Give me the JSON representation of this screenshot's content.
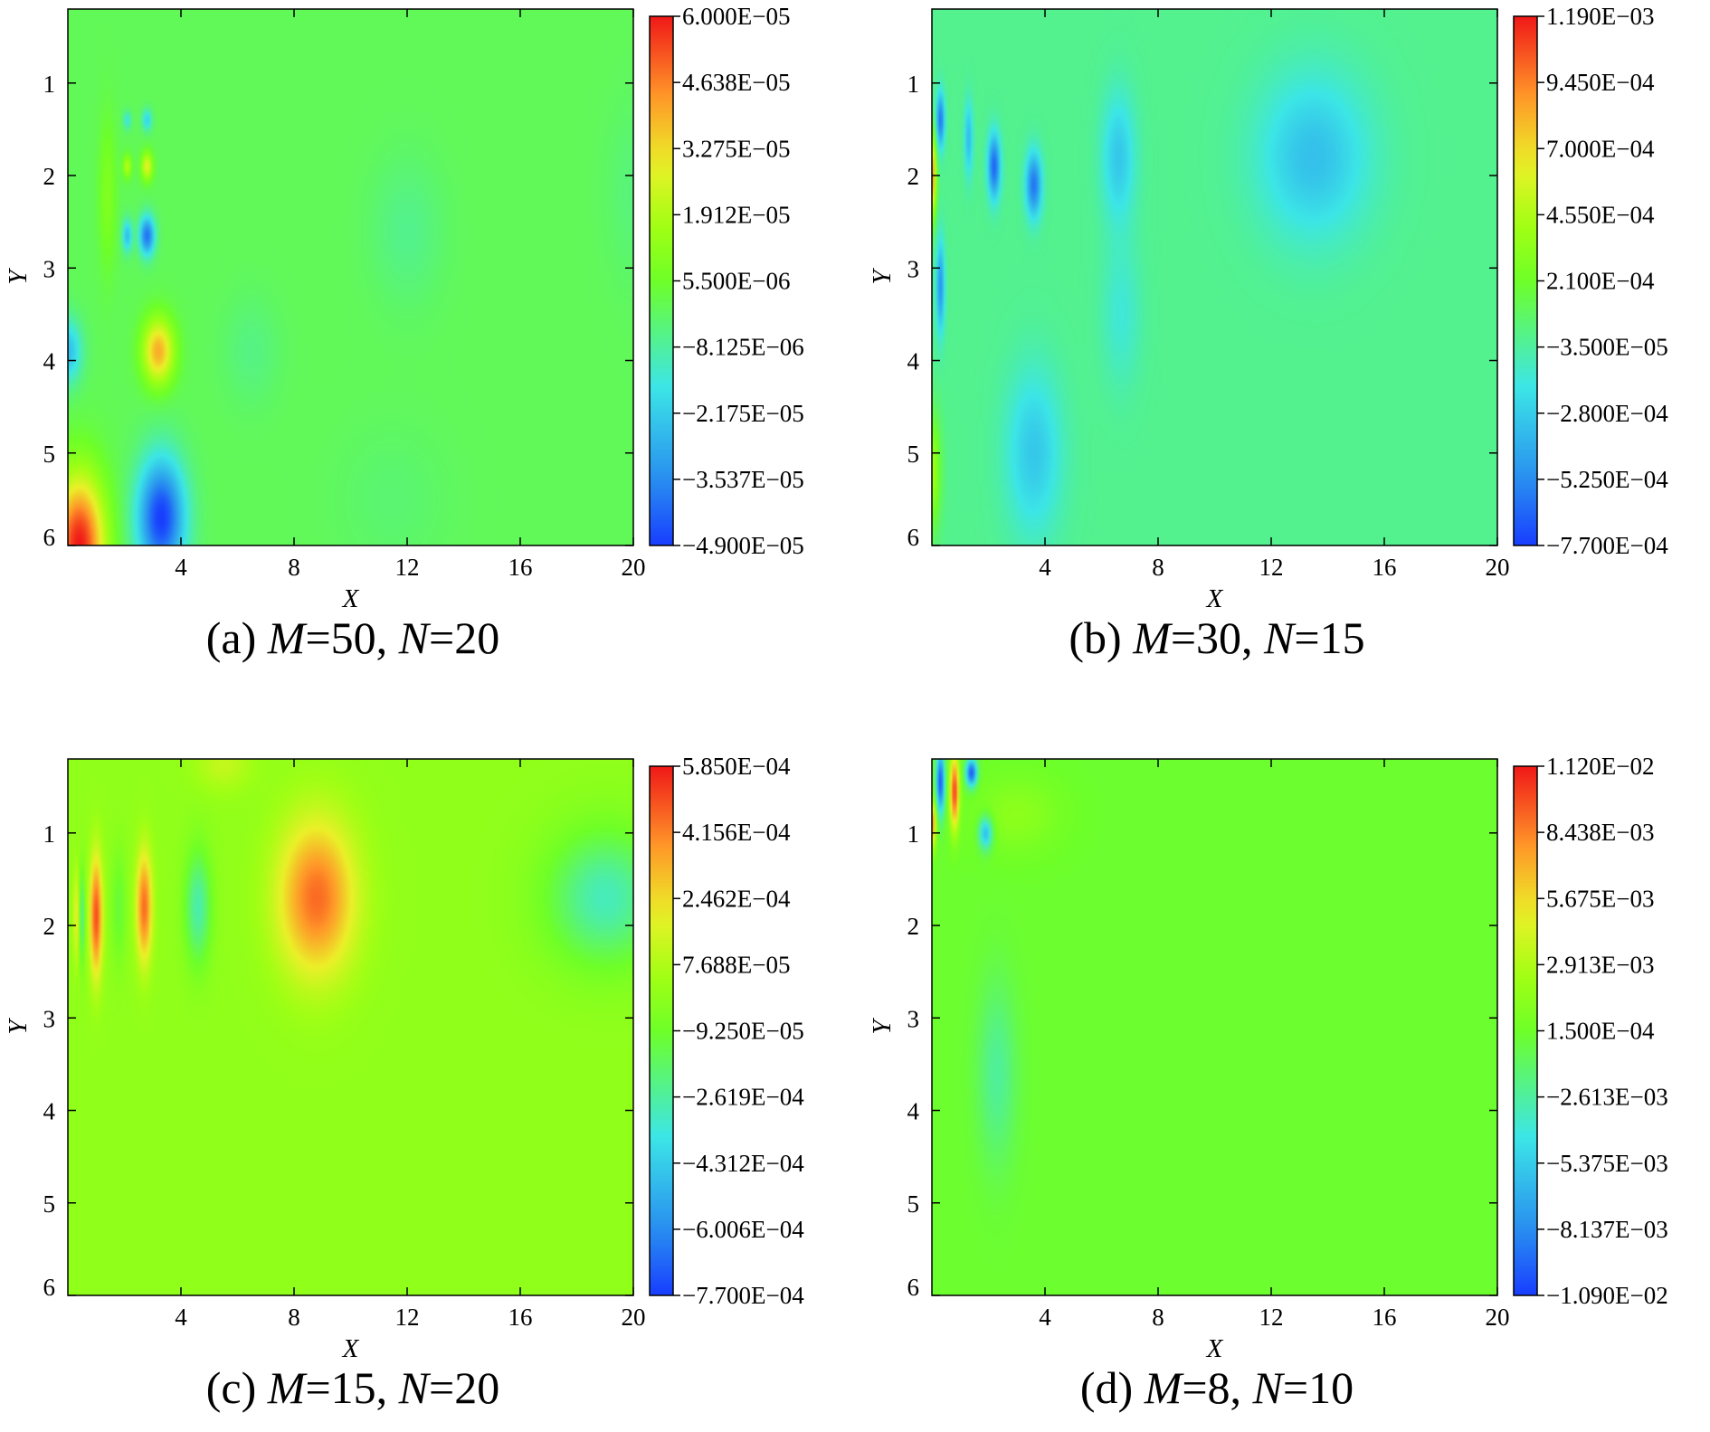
{
  "chart_data": [
    {
      "type": "heatmap",
      "panel": "(a)",
      "caption": {
        "prefix": "(a) ",
        "m_label": "M",
        "m_value": "=50, ",
        "n_label": "N",
        "n_value": "=20"
      },
      "xlabel": "X",
      "ylabel": "Y",
      "xlim": [
        0,
        20
      ],
      "ylim": [
        6,
        0.2
      ],
      "xticks": [
        "4",
        "8",
        "12",
        "16",
        "20"
      ],
      "yticks": [
        "1",
        "2",
        "3",
        "4",
        "5",
        "6"
      ],
      "colorbar": {
        "min": -4.9e-05,
        "max": 6e-05,
        "labels": [
          "6.000E−05",
          "4.638E−05",
          "3.275E−05",
          "1.912E−05",
          "5.500E−06",
          "−8.125E−06",
          "−2.175E−05",
          "−3.537E−05",
          "−4.900E−05"
        ]
      },
      "background": 0.0,
      "features": [
        {
          "x": 0.4,
          "y": 6.0,
          "sx": 0.9,
          "sy": 0.75,
          "v": 6e-05
        },
        {
          "x": 3.3,
          "y": 5.7,
          "sx": 0.85,
          "sy": 0.65,
          "v": -4.9e-05
        },
        {
          "x": 3.2,
          "y": 3.9,
          "sx": 0.55,
          "sy": 0.35,
          "v": 4e-05
        },
        {
          "x": 0.0,
          "y": 3.9,
          "sx": 0.5,
          "sy": 0.35,
          "v": -2.5e-05
        },
        {
          "x": 2.8,
          "y": 2.65,
          "sx": 0.28,
          "sy": 0.22,
          "v": -4e-05
        },
        {
          "x": 2.1,
          "y": 2.65,
          "sx": 0.18,
          "sy": 0.18,
          "v": -2.5e-05
        },
        {
          "x": 2.8,
          "y": 1.9,
          "sx": 0.2,
          "sy": 0.15,
          "v": 2.8e-05
        },
        {
          "x": 2.1,
          "y": 1.9,
          "sx": 0.15,
          "sy": 0.12,
          "v": 2e-05
        },
        {
          "x": 2.8,
          "y": 1.4,
          "sx": 0.18,
          "sy": 0.12,
          "v": -2e-05
        },
        {
          "x": 2.1,
          "y": 1.4,
          "sx": 0.15,
          "sy": 0.1,
          "v": -1.5e-05
        },
        {
          "x": 1.4,
          "y": 2.2,
          "sx": 0.3,
          "sy": 0.8,
          "v": 1e-05
        },
        {
          "x": 6.5,
          "y": 3.9,
          "sx": 1.0,
          "sy": 0.6,
          "v": -5e-06
        },
        {
          "x": 12.0,
          "y": 2.6,
          "sx": 1.3,
          "sy": 0.8,
          "v": -6e-06
        },
        {
          "x": 11.5,
          "y": 5.5,
          "sx": 2.0,
          "sy": 0.8,
          "v": -3e-06
        },
        {
          "x": 20.0,
          "y": 2.2,
          "sx": 1.0,
          "sy": 1.0,
          "v": -4e-06
        }
      ]
    },
    {
      "type": "heatmap",
      "panel": "(b)",
      "caption": {
        "prefix": "(b) ",
        "m_label": "M",
        "m_value": "=30, ",
        "n_label": "N",
        "n_value": "=15"
      },
      "xlabel": "X",
      "ylabel": "Y",
      "xlim": [
        0,
        20
      ],
      "ylim": [
        6,
        0.2
      ],
      "xticks": [
        "4",
        "8",
        "12",
        "16",
        "20"
      ],
      "yticks": [
        "1",
        "2",
        "3",
        "4",
        "5",
        "6"
      ],
      "colorbar": {
        "min": -0.00077,
        "max": 0.00119,
        "labels": [
          "1.190E−03",
          "9.450E−04",
          "7.000E−04",
          "4.550E−04",
          "2.100E−04",
          "−3.500E−05",
          "−2.800E−04",
          "−5.250E−04",
          "−7.700E−04"
        ]
      },
      "background": 0.0,
      "features": [
        {
          "x": 0.0,
          "y": 2.0,
          "sx": 0.15,
          "sy": 0.45,
          "v": 0.0009
        },
        {
          "x": 0.3,
          "y": 1.4,
          "sx": 0.15,
          "sy": 0.3,
          "v": -0.0006
        },
        {
          "x": 0.3,
          "y": 3.2,
          "sx": 0.15,
          "sy": 0.5,
          "v": -0.0005
        },
        {
          "x": 2.2,
          "y": 1.9,
          "sx": 0.22,
          "sy": 0.35,
          "v": -0.00065
        },
        {
          "x": 3.6,
          "y": 2.1,
          "sx": 0.28,
          "sy": 0.35,
          "v": -0.0006
        },
        {
          "x": 1.3,
          "y": 1.6,
          "sx": 0.15,
          "sy": 0.4,
          "v": -0.00035
        },
        {
          "x": 6.6,
          "y": 1.8,
          "sx": 0.6,
          "sy": 0.7,
          "v": -0.0003
        },
        {
          "x": 13.5,
          "y": 1.8,
          "sx": 2.0,
          "sy": 0.9,
          "v": -0.00033
        },
        {
          "x": 3.6,
          "y": 5.0,
          "sx": 1.0,
          "sy": 0.9,
          "v": -0.0003
        },
        {
          "x": 6.7,
          "y": 3.5,
          "sx": 0.7,
          "sy": 0.8,
          "v": -0.00015
        },
        {
          "x": 0.0,
          "y": 5.2,
          "sx": 0.3,
          "sy": 0.6,
          "v": 0.0004
        }
      ]
    },
    {
      "type": "heatmap",
      "panel": "(c)",
      "caption": {
        "prefix": "(c) ",
        "m_label": "M",
        "m_value": "=15, ",
        "n_label": "N",
        "n_value": "=20"
      },
      "xlabel": "X",
      "ylabel": "Y",
      "xlim": [
        0,
        20
      ],
      "ylim": [
        6,
        0.2
      ],
      "xticks": [
        "4",
        "8",
        "12",
        "16",
        "20"
      ],
      "yticks": [
        "1",
        "2",
        "3",
        "4",
        "5",
        "6"
      ],
      "colorbar": {
        "min": -0.00077,
        "max": 0.000585,
        "labels": [
          "5.850E−04",
          "4.156E−04",
          "2.462E−04",
          "7.688E−05",
          "−9.250E−05",
          "−2.619E−04",
          "−4.312E−04",
          "−6.006E−04",
          "−7.700E−04"
        ]
      },
      "background": 0.0,
      "features": [
        {
          "x": 1.0,
          "y": 1.9,
          "sx": 0.22,
          "sy": 0.65,
          "v": 0.0005
        },
        {
          "x": 0.3,
          "y": 1.9,
          "sx": 0.12,
          "sy": 0.5,
          "v": 0.0002
        },
        {
          "x": 0.5,
          "y": 1.9,
          "sx": 0.1,
          "sy": 0.5,
          "v": -0.00025
        },
        {
          "x": 2.7,
          "y": 1.8,
          "sx": 0.28,
          "sy": 0.6,
          "v": 0.00045
        },
        {
          "x": 1.8,
          "y": 1.8,
          "sx": 0.25,
          "sy": 0.6,
          "v": -0.00012
        },
        {
          "x": 4.6,
          "y": 1.8,
          "sx": 0.45,
          "sy": 0.6,
          "v": -0.00028
        },
        {
          "x": 8.8,
          "y": 1.7,
          "sx": 1.4,
          "sy": 0.85,
          "v": 0.00045
        },
        {
          "x": 19.0,
          "y": 1.7,
          "sx": 2.0,
          "sy": 0.7,
          "v": -0.0003
        },
        {
          "x": 5.5,
          "y": 0.25,
          "sx": 1.0,
          "sy": 0.3,
          "v": 0.00012
        }
      ]
    },
    {
      "type": "heatmap",
      "panel": "(d)",
      "caption": {
        "prefix": "(d) ",
        "m_label": "M",
        "m_value": "=8, ",
        "n_label": "N",
        "n_value": "=10"
      },
      "xlabel": "X",
      "ylabel": "Y",
      "xlim": [
        0,
        20
      ],
      "ylim": [
        6,
        0.2
      ],
      "xticks": [
        "4",
        "8",
        "12",
        "16",
        "20"
      ],
      "yticks": [
        "1",
        "2",
        "3",
        "4",
        "5",
        "6"
      ],
      "colorbar": {
        "min": -0.0109,
        "max": 0.0112,
        "labels": [
          "1.120E−02",
          "8.438E−03",
          "5.675E−03",
          "2.913E−03",
          "1.500E−04",
          "−2.613E−03",
          "−5.375E−03",
          "−8.137E−03",
          "−1.090E−02"
        ]
      },
      "background": 0.0,
      "features": [
        {
          "x": 0.3,
          "y": 0.45,
          "sx": 0.15,
          "sy": 0.35,
          "v": -0.01
        },
        {
          "x": 0.8,
          "y": 0.55,
          "sx": 0.16,
          "sy": 0.4,
          "v": 0.01
        },
        {
          "x": 1.4,
          "y": 0.35,
          "sx": 0.2,
          "sy": 0.15,
          "v": -0.01
        },
        {
          "x": 1.9,
          "y": 1.0,
          "sx": 0.25,
          "sy": 0.18,
          "v": -0.0065
        },
        {
          "x": 0.0,
          "y": 0.9,
          "sx": 0.15,
          "sy": 0.25,
          "v": 0.008
        },
        {
          "x": 2.3,
          "y": 3.6,
          "sx": 0.7,
          "sy": 1.0,
          "v": -0.0025
        },
        {
          "x": 3.0,
          "y": 0.8,
          "sx": 1.5,
          "sy": 0.4,
          "v": 0.0015
        }
      ]
    }
  ]
}
